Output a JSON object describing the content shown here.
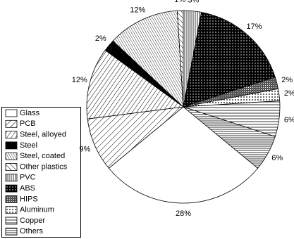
{
  "chart_data": {
    "type": "pie",
    "categories": [
      "Glass",
      "PCB",
      "Steel, alloyed",
      "Steel",
      "Steel, coated",
      "Other plastics",
      "PVC",
      "ABS",
      "HIPS",
      "Aluminum",
      "Copper",
      "Others"
    ],
    "values": [
      28,
      9,
      12,
      2,
      12,
      1,
      3,
      17,
      2,
      2,
      6,
      6
    ],
    "value_labels": [
      "28%",
      "9%",
      "12%",
      "2%",
      "12%",
      "1%",
      "3%",
      "17%",
      "2%",
      "2%",
      "6%",
      "6%"
    ]
  }
}
